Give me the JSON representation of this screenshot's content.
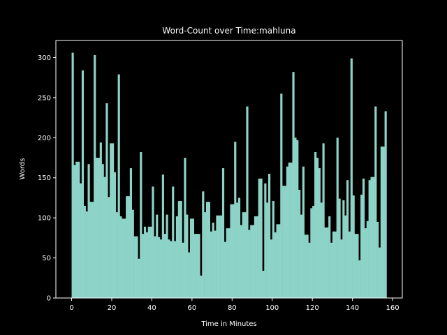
{
  "chart_data": {
    "type": "histogram",
    "title": "Word-Count over Time:mahluna",
    "x_label": "Time in Minutes",
    "y_label": "Words",
    "color": "#8dd3c7",
    "bins": [
      0,
      1,
      2,
      3,
      4,
      5,
      6,
      7,
      8,
      9,
      10,
      11,
      12,
      13,
      14,
      15,
      16,
      17,
      18,
      19,
      20,
      21,
      22,
      23,
      24,
      25,
      26,
      27,
      28,
      29,
      30,
      31,
      32,
      33,
      34,
      35,
      36,
      37,
      38,
      39,
      40,
      41,
      42,
      43,
      44,
      45,
      46,
      47,
      48,
      49,
      50,
      51,
      52,
      53,
      54,
      55,
      56,
      57,
      58,
      59,
      60,
      61,
      62,
      63,
      64,
      65,
      66,
      67,
      68,
      69,
      70,
      71,
      72,
      73,
      74,
      75,
      76,
      77,
      78,
      79,
      80,
      81,
      82,
      83,
      84,
      85,
      86,
      87,
      88,
      89,
      90,
      91,
      92,
      93,
      94,
      95,
      96,
      97,
      98,
      99,
      100,
      101,
      102,
      103,
      104,
      105,
      106,
      107,
      108,
      109,
      110,
      111,
      112,
      113,
      114,
      115,
      116,
      117,
      118,
      119,
      120,
      121,
      122,
      123,
      124,
      125,
      126,
      127,
      128,
      129,
      130,
      131,
      132,
      133,
      134,
      135,
      136,
      137,
      138,
      139,
      140,
      141,
      142,
      143,
      144,
      145,
      146,
      147,
      148,
      149,
      150,
      151,
      152,
      153,
      154,
      155,
      156,
      157
    ],
    "values": [
      306,
      166,
      170,
      170,
      143,
      284,
      115,
      108,
      167,
      120,
      120,
      303,
      175,
      175,
      194,
      167,
      151,
      243,
      126,
      193,
      193,
      157,
      107,
      279,
      102,
      99,
      99,
      127,
      127,
      162,
      110,
      77,
      77,
      49,
      182,
      80,
      89,
      82,
      89,
      89,
      139,
      77,
      104,
      76,
      73,
      154,
      80,
      104,
      73,
      71,
      139,
      71,
      102,
      121,
      121,
      69,
      175,
      104,
      57,
      99,
      99,
      80,
      80,
      80,
      28,
      133,
      107,
      120,
      120,
      83,
      94,
      84,
      103,
      103,
      103,
      162,
      70,
      87,
      87,
      117,
      117,
      195,
      119,
      125,
      91,
      107,
      107,
      239,
      85,
      91,
      91,
      102,
      102,
      149,
      149,
      34,
      143,
      119,
      155,
      73,
      121,
      82,
      92,
      92,
      255,
      140,
      140,
      164,
      169,
      169,
      282,
      200,
      197,
      135,
      104,
      164,
      79,
      79,
      69,
      112,
      115,
      182,
      175,
      162,
      119,
      193,
      88,
      88,
      102,
      69,
      83,
      83,
      200,
      124,
      73,
      122,
      103,
      147,
      83,
      299,
      128,
      80,
      80,
      47,
      129,
      149,
      87,
      96,
      147,
      151,
      151,
      239,
      95,
      63,
      189,
      189,
      233
    ],
    "xlim": [
      -7.85,
      164.85
    ],
    "xticks": [
      0,
      20,
      40,
      60,
      80,
      100,
      120,
      140,
      160
    ],
    "ylim": [
      0,
      321.3
    ],
    "yticks": [
      0,
      50,
      100,
      150,
      200,
      250,
      300
    ]
  }
}
